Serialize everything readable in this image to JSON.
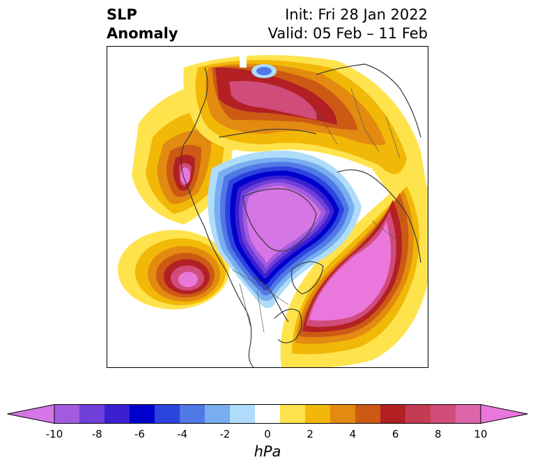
{
  "header": {
    "variable_line1": "SLP",
    "variable_line2": "Anomaly",
    "init_text": "Init: Fri 28 Jan 2022",
    "valid_text": "Valid: 05 Feb – 11 Feb"
  },
  "colorbar": {
    "units": "hPa",
    "levels": [
      -10,
      -9,
      -8,
      -7,
      -6,
      -5,
      -4,
      -3,
      -2,
      -1,
      1,
      2,
      3,
      4,
      5,
      6,
      7,
      8,
      9,
      10
    ],
    "tick_labels": [
      "-10",
      "-8",
      "-6",
      "-4",
      "-2",
      "0",
      "2",
      "4",
      "6",
      "8",
      "10"
    ],
    "colors": [
      "#d575e6",
      "#a25be0",
      "#6f3fd9",
      "#3b1fd0",
      "#0000cd",
      "#2c44de",
      "#5078e6",
      "#78aeef",
      "#aedcfa",
      "#ffffff",
      "#ffe34d",
      "#f2b807",
      "#e38a10",
      "#cc5a15",
      "#b22024",
      "#c23c52",
      "#d04c7a",
      "#dd66aa",
      "#ea78dc"
    ],
    "extend": "both"
  },
  "map": {
    "projection": "north-polar-stereographic",
    "features": [
      "coastlines",
      "country-borders",
      "state-borders"
    ]
  }
}
